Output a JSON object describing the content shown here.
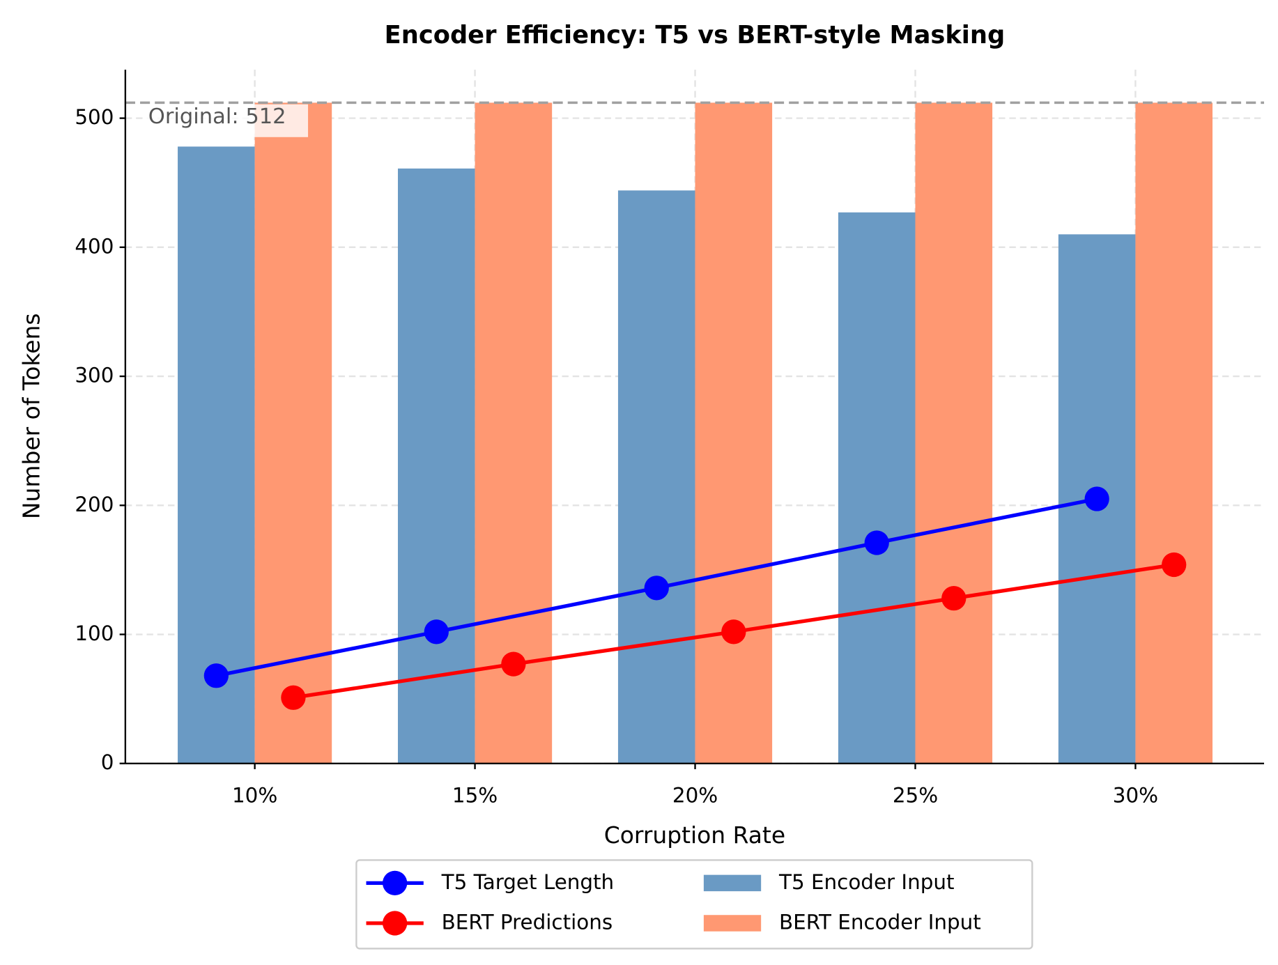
{
  "chart_data": {
    "type": "bar-line",
    "title": "Encoder Efficiency: T5 vs BERT-style Masking",
    "x_label": "Corruption Rate",
    "y_label": "Number of Tokens",
    "categories": [
      "10%",
      "15%",
      "20%",
      "25%",
      "30%"
    ],
    "ylim": [
      0,
      537.6
    ],
    "yticks": [
      0,
      100,
      200,
      300,
      400,
      500
    ],
    "grid": true,
    "series": [
      {
        "name": "T5 Target Length",
        "kind": "line",
        "color": "#0000ff",
        "values": [
          68,
          102,
          136,
          171,
          205
        ]
      },
      {
        "name": "BERT Predictions",
        "kind": "line",
        "color": "#ff0000",
        "values": [
          51,
          77,
          102,
          128,
          154
        ]
      },
      {
        "name": "T5 Encoder Input",
        "kind": "bar",
        "color": "#6a9ac4",
        "values": [
          478,
          461,
          444,
          427,
          410
        ]
      },
      {
        "name": "BERT Encoder Input",
        "kind": "bar",
        "color": "#ff9872",
        "values": [
          512,
          512,
          512,
          512,
          512
        ]
      }
    ],
    "reference_line": {
      "value": 512,
      "label": "Original: 512"
    },
    "legend": "lower center outside"
  }
}
